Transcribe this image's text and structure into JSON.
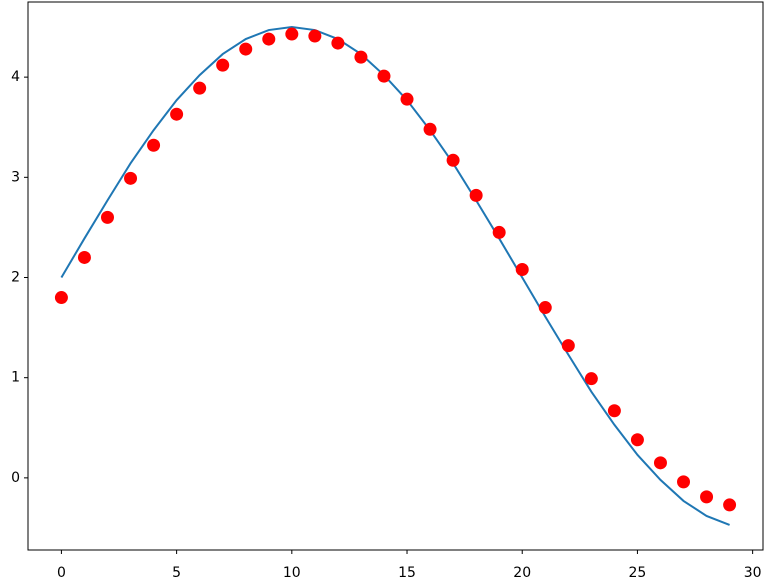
{
  "chart_data": {
    "type": "line",
    "x": [
      0,
      1,
      2,
      3,
      4,
      5,
      6,
      7,
      8,
      9,
      10,
      11,
      12,
      13,
      14,
      15,
      16,
      17,
      18,
      19,
      20,
      21,
      22,
      23,
      24,
      25,
      26,
      27,
      28,
      29
    ],
    "series": [
      {
        "kind": "line",
        "color": "#1f77b4",
        "values": [
          2.0,
          2.39,
          2.77,
          3.14,
          3.47,
          3.77,
          4.02,
          4.23,
          4.38,
          4.47,
          4.5,
          4.47,
          4.38,
          4.23,
          4.02,
          3.77,
          3.47,
          3.14,
          2.77,
          2.39,
          2.0,
          1.61,
          1.23,
          0.86,
          0.53,
          0.23,
          -0.02,
          -0.23,
          -0.38,
          -0.47
        ]
      },
      {
        "kind": "scatter",
        "color": "#ff0000",
        "values": [
          1.8,
          2.2,
          2.6,
          2.99,
          3.32,
          3.63,
          3.89,
          4.12,
          4.28,
          4.38,
          4.43,
          4.41,
          4.34,
          4.2,
          4.01,
          3.78,
          3.48,
          3.17,
          2.82,
          2.45,
          2.08,
          1.7,
          1.32,
          0.99,
          0.67,
          0.38,
          0.15,
          -0.04,
          -0.19,
          -0.27
        ]
      }
    ],
    "xlim": [
      -1.45,
      30.45
    ],
    "ylim": [
      -0.72,
      4.75
    ],
    "xticks": [
      0,
      5,
      10,
      15,
      20,
      25,
      30
    ],
    "yticks": [
      0,
      1,
      2,
      3,
      4
    ],
    "grid": false
  }
}
